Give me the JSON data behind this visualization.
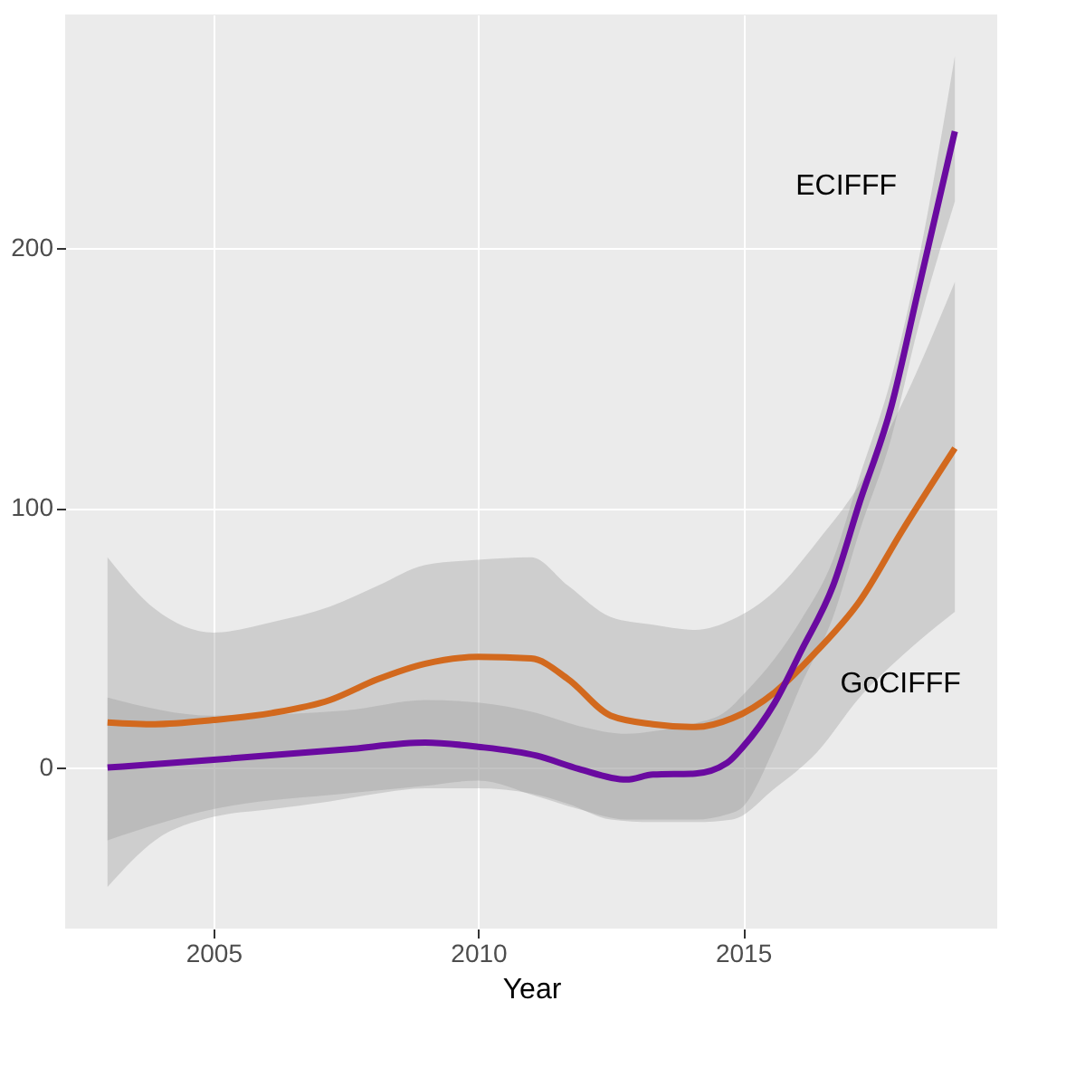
{
  "chart_data": {
    "type": "line",
    "xlabel": "Year",
    "xlim": [
      2002.2,
      2019.8
    ],
    "xticks": [
      2005,
      2010,
      2015
    ],
    "ylim": [
      -62,
      290
    ],
    "yticks": [
      0,
      100,
      200
    ],
    "grid": true,
    "legend": false,
    "line_style": "solid",
    "marker": "none",
    "series": [
      {
        "name": "GoCIFFF",
        "color": "#d2691e",
        "x": [
          2003,
          2003.9,
          2005,
          2006.1,
          2007.2,
          2008.1,
          2009,
          2010,
          2011,
          2011.7,
          2012.5,
          2013.3,
          2014.1,
          2014.8,
          2015.6,
          2016.4,
          2017.2,
          2018,
          2019
        ],
        "values": [
          17.4,
          16.7,
          18.3,
          21,
          26,
          34,
          40,
          42.6,
          42,
          34,
          20,
          16.7,
          15.6,
          19,
          29,
          45,
          64,
          91,
          123
        ],
        "upper": [
          81,
          61,
          52,
          56,
          62,
          70,
          78,
          80,
          81,
          70,
          58,
          55,
          53,
          57,
          68,
          87,
          109,
          140,
          187
        ],
        "lower": [
          -46,
          -28,
          -19,
          -16,
          -13,
          -10,
          -8,
          -8,
          -10,
          -14,
          -20,
          -21,
          -21,
          -20,
          -8,
          6,
          27,
          43,
          60
        ]
      },
      {
        "name": "ECIFFF",
        "color": "#6a0aa0",
        "x": [
          2003,
          2005,
          2007.5,
          2009,
          2010,
          2011.1,
          2011.9,
          2012.8,
          2013.3,
          2014.1,
          2014.7,
          2015,
          2015.6,
          2016.1,
          2016.7,
          2017.2,
          2017.8,
          2018.3,
          2019
        ],
        "values": [
          0,
          3,
          7,
          9.6,
          8,
          4.6,
          -0.5,
          -4.6,
          -2.7,
          -2.3,
          1.8,
          8,
          25,
          45,
          70,
          102,
          139,
          183,
          245
        ],
        "upper": [
          27,
          20,
          22,
          26,
          25,
          21,
          16,
          13,
          14,
          17,
          22,
          28,
          42,
          57,
          80,
          112,
          150,
          194,
          274
        ],
        "lower": [
          -28,
          -16,
          -10,
          -7,
          -5,
          -11,
          -16,
          -20,
          -20,
          -20,
          -18,
          -15,
          8,
          32,
          58,
          91,
          127,
          169,
          218
        ]
      }
    ]
  }
}
